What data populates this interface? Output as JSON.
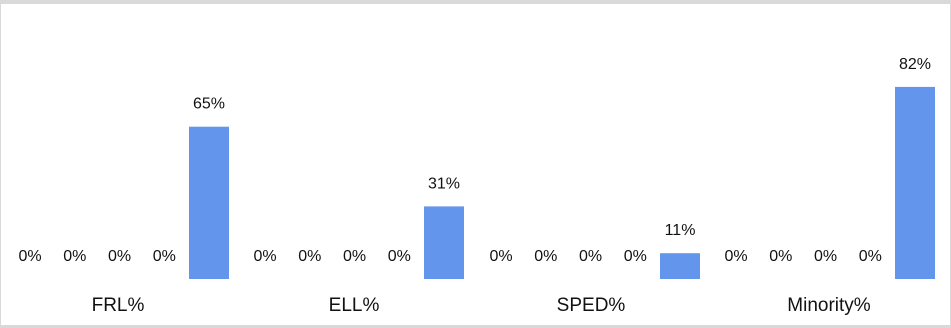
{
  "chart_data": {
    "type": "bar",
    "categories": [
      "FRL%",
      "ELL%",
      "SPED%",
      "Minority%"
    ],
    "series": [
      {
        "values": [
          0,
          0,
          0,
          0
        ]
      },
      {
        "values": [
          0,
          0,
          0,
          0
        ]
      },
      {
        "values": [
          0,
          0,
          0,
          0
        ]
      },
      {
        "values": [
          0,
          0,
          0,
          0
        ]
      },
      {
        "values": [
          65,
          31,
          11,
          82
        ]
      }
    ],
    "value_suffix": "%",
    "ylim": [
      0,
      100
    ],
    "grid": false,
    "legend": "none",
    "colors": {
      "bar": "#6495ed",
      "text": "#111111",
      "frame": "#d9d9d9"
    }
  }
}
